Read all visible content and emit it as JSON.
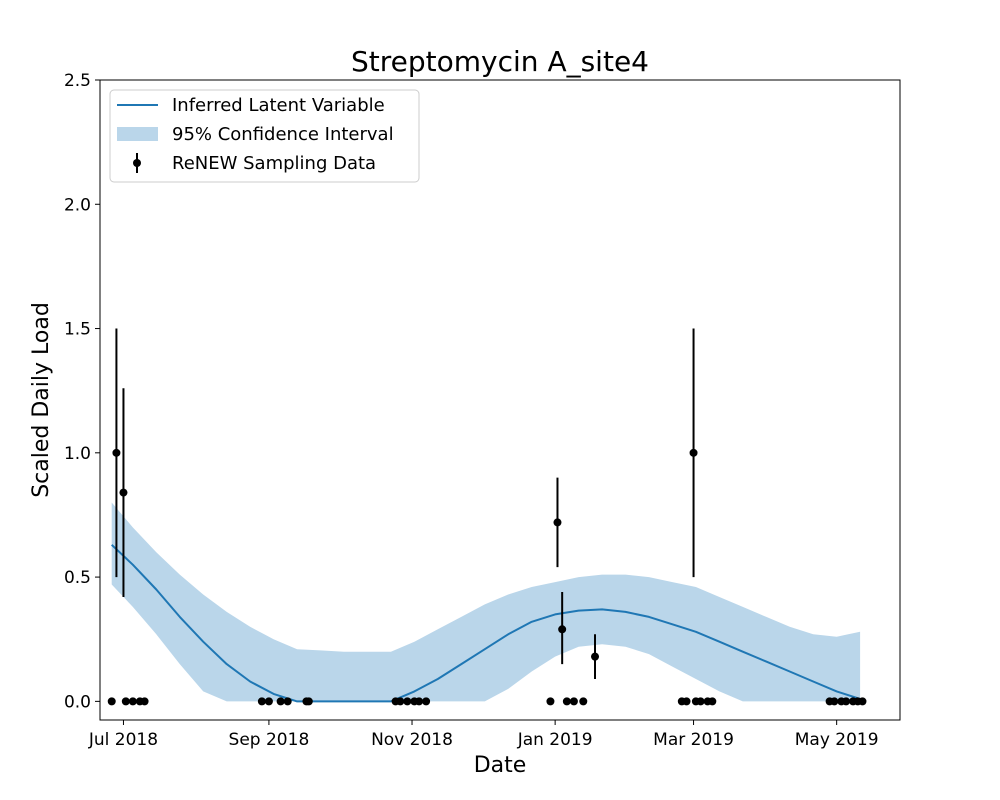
{
  "chart_data": {
    "type": "line",
    "title": "Streptomycin A_site4",
    "xlabel": "Date",
    "ylabel": "Scaled Daily Load",
    "x_axis": "date",
    "xlim": [
      "2018-06-21",
      "2019-05-28"
    ],
    "ylim": [
      -0.075,
      2.5
    ],
    "x_ticks": [
      {
        "date": "2018-07-01",
        "label": "Jul 2018"
      },
      {
        "date": "2018-09-01",
        "label": "Sep 2018"
      },
      {
        "date": "2018-11-01",
        "label": "Nov 2018"
      },
      {
        "date": "2019-01-01",
        "label": "Jan 2019"
      },
      {
        "date": "2019-03-01",
        "label": "Mar 2019"
      },
      {
        "date": "2019-05-01",
        "label": "May 2019"
      }
    ],
    "y_ticks": [
      {
        "value": 0.0,
        "label": "0.0"
      },
      {
        "value": 0.5,
        "label": "0.5"
      },
      {
        "value": 1.0,
        "label": "1.0"
      },
      {
        "value": 1.5,
        "label": "1.5"
      },
      {
        "value": 2.0,
        "label": "2.0"
      },
      {
        "value": 2.5,
        "label": "2.5"
      }
    ],
    "grid": false,
    "legend_position": "upper-left",
    "colors": {
      "line": "#1f77b4",
      "band": "#bad6ea",
      "points": "#000000"
    },
    "series": [
      {
        "name": "Inferred Latent Variable",
        "kind": "line",
        "x": [
          "2018-06-26",
          "2018-07-05",
          "2018-07-15",
          "2018-07-25",
          "2018-08-04",
          "2018-08-14",
          "2018-08-24",
          "2018-09-03",
          "2018-09-13",
          "2018-09-23",
          "2018-10-03",
          "2018-10-13",
          "2018-10-23",
          "2018-11-02",
          "2018-11-12",
          "2018-11-22",
          "2018-12-02",
          "2018-12-12",
          "2018-12-22",
          "2019-01-01",
          "2019-01-11",
          "2019-01-21",
          "2019-01-31",
          "2019-02-10",
          "2019-02-20",
          "2019-03-02",
          "2019-03-12",
          "2019-03-22",
          "2019-04-01",
          "2019-04-11",
          "2019-04-21",
          "2019-05-01",
          "2019-05-11"
        ],
        "y": [
          0.63,
          0.55,
          0.45,
          0.34,
          0.24,
          0.15,
          0.08,
          0.03,
          0.0,
          0.0,
          0.0,
          0.0,
          0.0,
          0.04,
          0.09,
          0.15,
          0.21,
          0.27,
          0.32,
          0.35,
          0.365,
          0.37,
          0.36,
          0.34,
          0.31,
          0.28,
          0.24,
          0.2,
          0.16,
          0.12,
          0.08,
          0.04,
          0.01
        ]
      },
      {
        "name": "95% Confidence Interval",
        "kind": "band",
        "x": [
          "2018-06-26",
          "2018-07-05",
          "2018-07-15",
          "2018-07-25",
          "2018-08-04",
          "2018-08-14",
          "2018-08-24",
          "2018-09-03",
          "2018-09-13",
          "2018-09-23",
          "2018-10-03",
          "2018-10-13",
          "2018-10-23",
          "2018-11-02",
          "2018-11-12",
          "2018-11-22",
          "2018-12-02",
          "2018-12-12",
          "2018-12-22",
          "2019-01-01",
          "2019-01-11",
          "2019-01-21",
          "2019-01-31",
          "2019-02-10",
          "2019-02-20",
          "2019-03-02",
          "2019-03-12",
          "2019-03-22",
          "2019-04-01",
          "2019-04-11",
          "2019-04-21",
          "2019-05-01",
          "2019-05-11"
        ],
        "lower": [
          0.47,
          0.38,
          0.27,
          0.15,
          0.04,
          0.0,
          0.0,
          0.0,
          0.0,
          0.0,
          0.0,
          0.0,
          0.0,
          0.0,
          0.0,
          0.0,
          0.0,
          0.05,
          0.12,
          0.18,
          0.22,
          0.23,
          0.22,
          0.19,
          0.14,
          0.09,
          0.04,
          0.0,
          0.0,
          0.0,
          0.0,
          0.0,
          0.0
        ],
        "upper": [
          0.8,
          0.7,
          0.6,
          0.51,
          0.43,
          0.36,
          0.3,
          0.25,
          0.21,
          0.205,
          0.2,
          0.2,
          0.2,
          0.24,
          0.29,
          0.34,
          0.39,
          0.43,
          0.46,
          0.48,
          0.5,
          0.51,
          0.51,
          0.5,
          0.48,
          0.46,
          0.42,
          0.38,
          0.34,
          0.3,
          0.27,
          0.26,
          0.28
        ]
      },
      {
        "name": "ReNEW Sampling Data",
        "kind": "errorbar",
        "points": [
          {
            "date": "2018-06-26",
            "y": 0.0
          },
          {
            "date": "2018-06-28",
            "y": 1.0,
            "err_low": 0.5,
            "err_high": 1.5
          },
          {
            "date": "2018-07-01",
            "y": 0.84,
            "err_low": 0.42,
            "err_high": 1.26
          },
          {
            "date": "2018-07-02",
            "y": 0.0
          },
          {
            "date": "2018-07-05",
            "y": 0.0
          },
          {
            "date": "2018-07-08",
            "y": 0.0
          },
          {
            "date": "2018-07-10",
            "y": 0.0
          },
          {
            "date": "2018-08-29",
            "y": 0.0
          },
          {
            "date": "2018-09-01",
            "y": 0.0
          },
          {
            "date": "2018-09-06",
            "y": 0.0
          },
          {
            "date": "2018-09-09",
            "y": 0.0
          },
          {
            "date": "2018-09-17",
            "y": 0.0
          },
          {
            "date": "2018-09-18",
            "y": 0.0
          },
          {
            "date": "2018-10-25",
            "y": 0.0
          },
          {
            "date": "2018-10-27",
            "y": 0.0
          },
          {
            "date": "2018-10-30",
            "y": 0.0
          },
          {
            "date": "2018-11-02",
            "y": 0.0
          },
          {
            "date": "2018-11-04",
            "y": 0.0
          },
          {
            "date": "2018-11-07",
            "y": 0.0
          },
          {
            "date": "2018-12-30",
            "y": 0.0
          },
          {
            "date": "2019-01-02",
            "y": 0.72,
            "err_low": 0.54,
            "err_high": 0.9
          },
          {
            "date": "2019-01-04",
            "y": 0.29,
            "err_low": 0.15,
            "err_high": 0.44
          },
          {
            "date": "2019-01-06",
            "y": 0.0
          },
          {
            "date": "2019-01-09",
            "y": 0.0
          },
          {
            "date": "2019-01-13",
            "y": 0.0
          },
          {
            "date": "2019-01-18",
            "y": 0.18,
            "err_low": 0.09,
            "err_high": 0.27
          },
          {
            "date": "2019-02-24",
            "y": 0.0
          },
          {
            "date": "2019-02-26",
            "y": 0.0
          },
          {
            "date": "2019-03-01",
            "y": 1.0,
            "err_low": 0.5,
            "err_high": 1.5
          },
          {
            "date": "2019-03-02",
            "y": 0.0
          },
          {
            "date": "2019-03-04",
            "y": 0.0
          },
          {
            "date": "2019-03-07",
            "y": 0.0
          },
          {
            "date": "2019-03-09",
            "y": 0.0
          },
          {
            "date": "2019-04-28",
            "y": 0.0
          },
          {
            "date": "2019-04-30",
            "y": 0.0
          },
          {
            "date": "2019-05-03",
            "y": 0.0
          },
          {
            "date": "2019-05-05",
            "y": 0.0
          },
          {
            "date": "2019-05-08",
            "y": 0.0
          },
          {
            "date": "2019-05-10",
            "y": 0.0
          },
          {
            "date": "2019-05-12",
            "y": 0.0
          }
        ]
      }
    ]
  }
}
